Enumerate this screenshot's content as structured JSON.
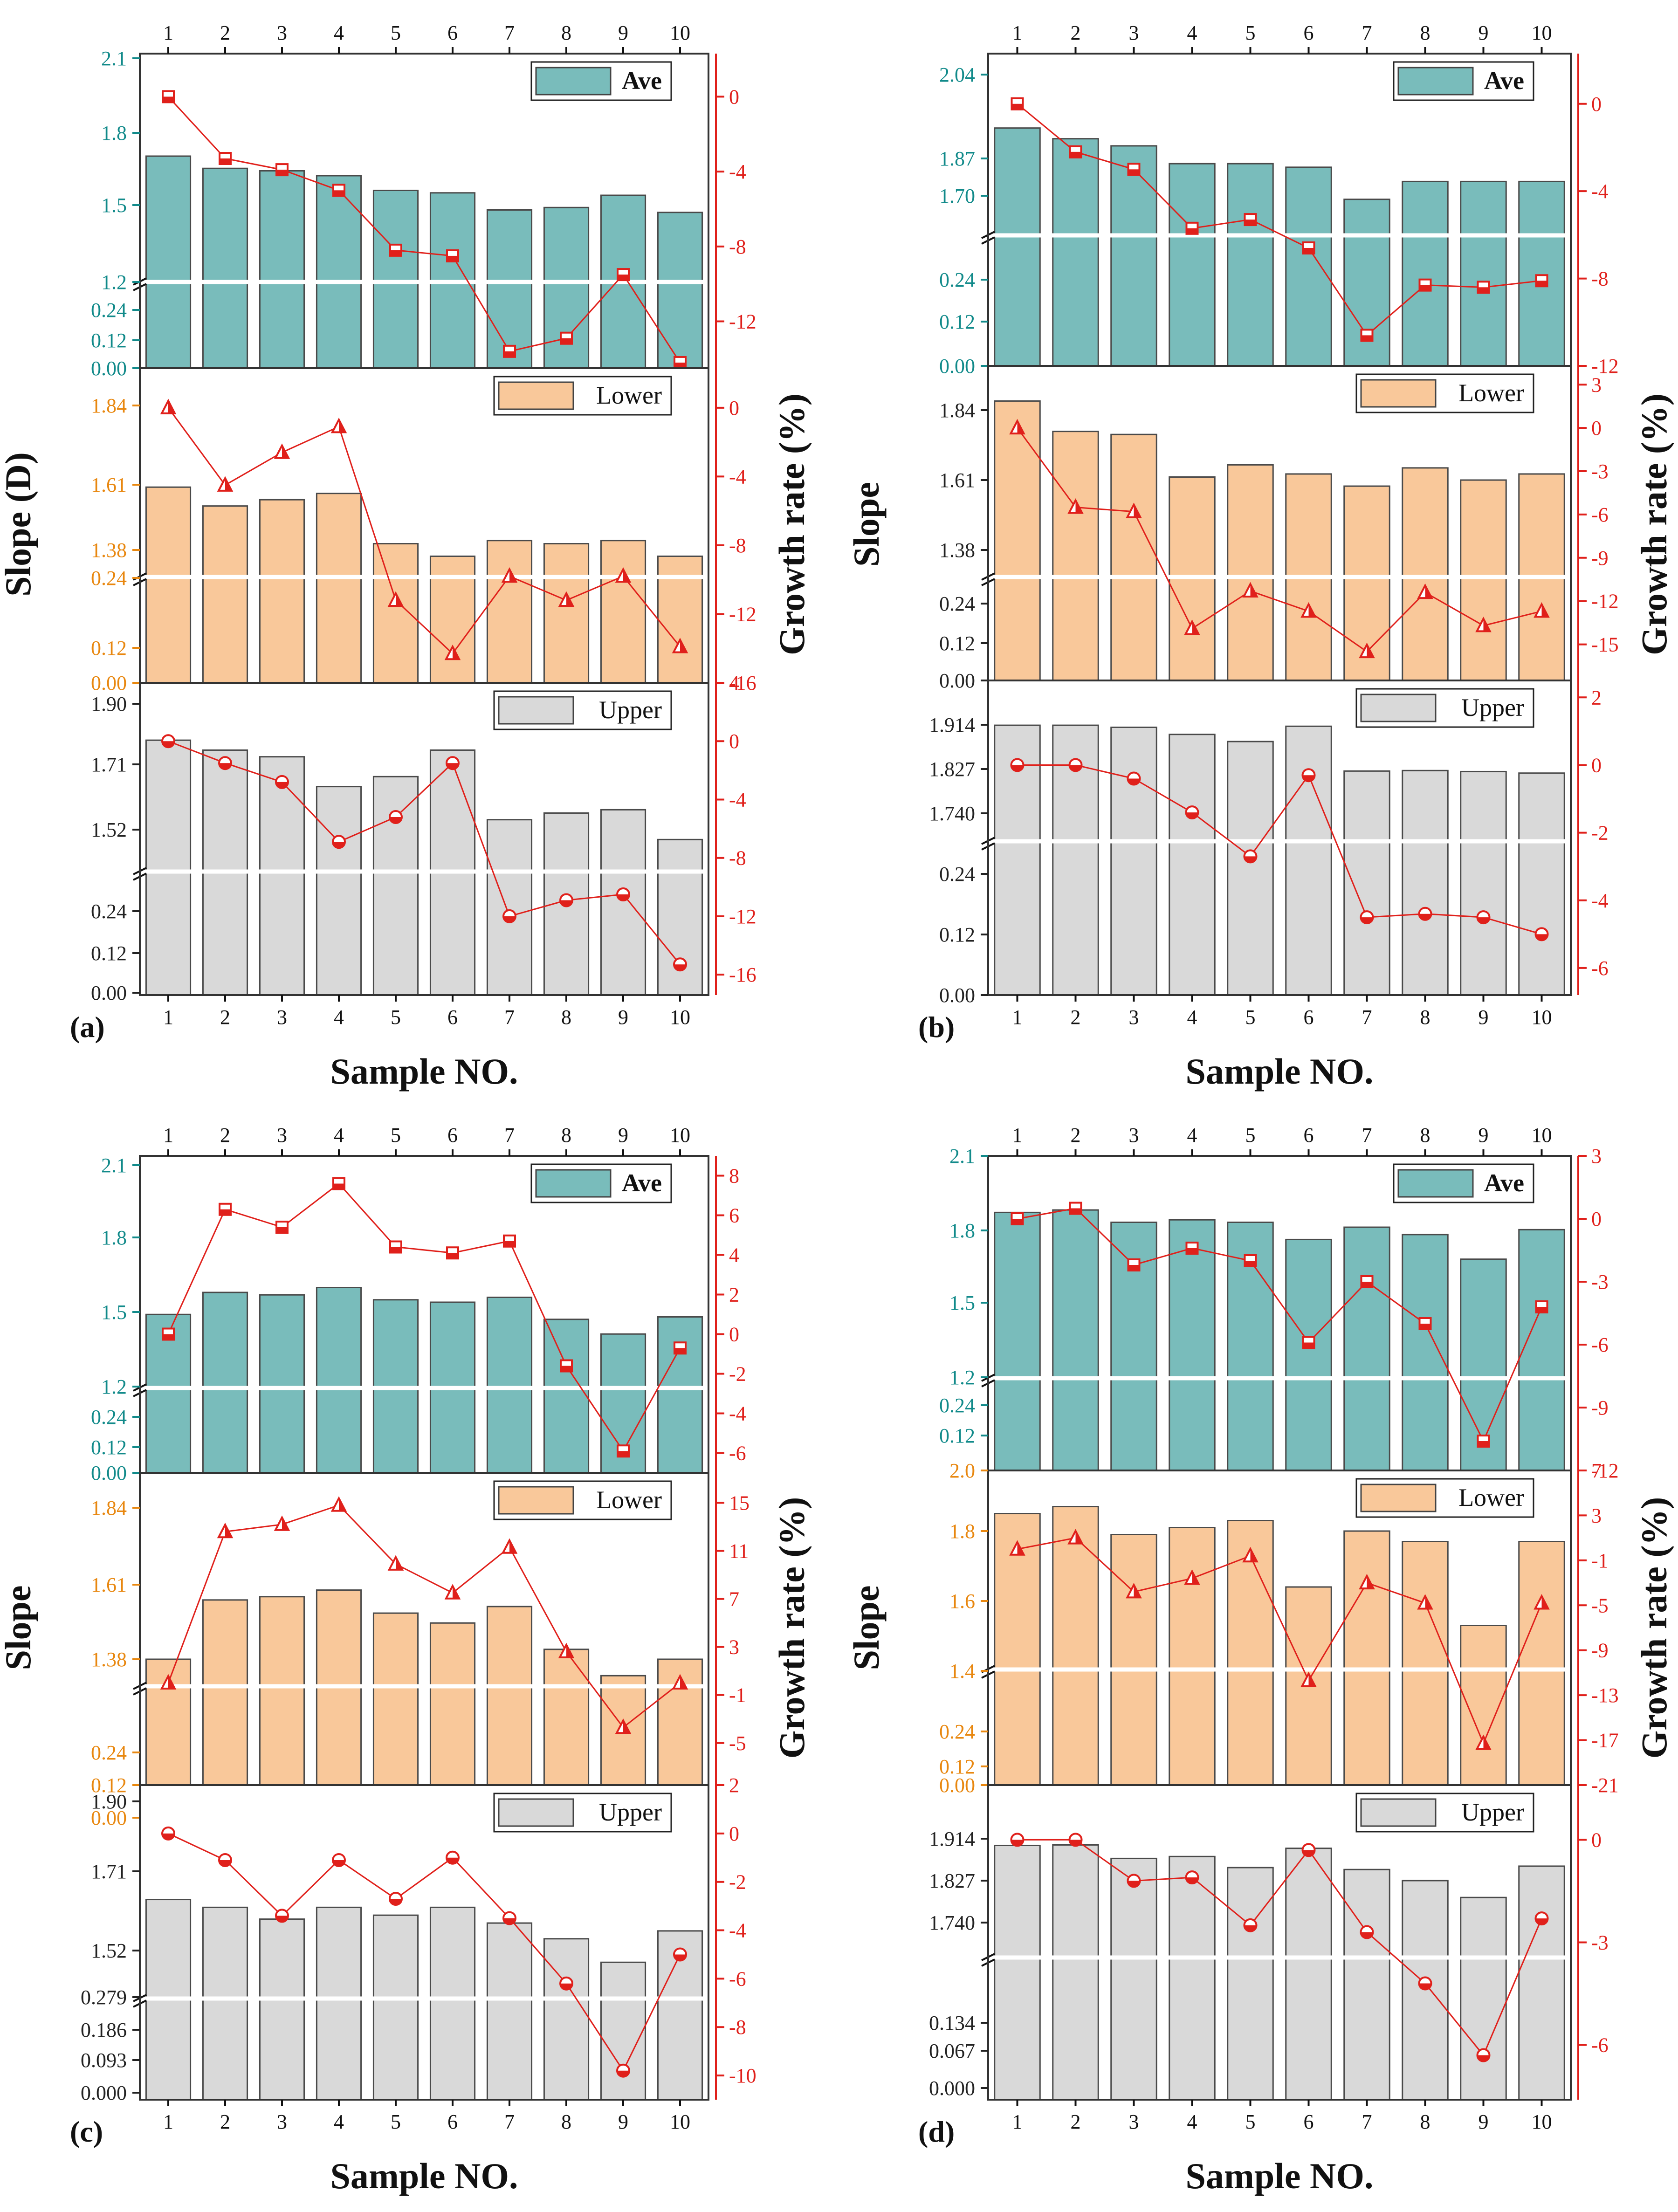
{
  "figure": {
    "sample_axis_label": "Sample NO.",
    "colors": {
      "ave": "#79bcbb",
      "lower": "#f9c89a",
      "upper": "#d9d9d9",
      "ave_axis": "#118a8a",
      "lower_axis": "#e8870f",
      "line": "#e0201b",
      "frame": "#333333"
    }
  },
  "chart_data": [
    {
      "type": "bar+line",
      "panel_label": "(a)",
      "xlabel": "Sample NO.",
      "ylabel": "Slope (D)",
      "y2label": "Growth rate (%)",
      "categories": [
        "1",
        "2",
        "3",
        "4",
        "5",
        "6",
        "7",
        "8",
        "9",
        "10"
      ],
      "subplots": [
        {
          "name": "Ave",
          "bar_color": "#79bcbb",
          "marker": "square",
          "left_axis_color": "#118a8a",
          "left_ticks": [
            "2.1",
            "1.8",
            "1.5",
            "1.2",
            "0.24",
            "0.12",
            "0.00"
          ],
          "bars": [
            1.7,
            1.65,
            1.64,
            1.62,
            1.56,
            1.55,
            1.48,
            1.49,
            1.54,
            1.47
          ],
          "right_ticks": [
            "0",
            "-4",
            "-8",
            "-12"
          ],
          "right_range": [
            -14.5,
            2.3
          ],
          "growth": [
            0,
            -3.3,
            -3.9,
            -5.0,
            -8.2,
            -8.5,
            -13.6,
            -12.9,
            -9.5,
            -14.2
          ]
        },
        {
          "name": "Lower",
          "bar_color": "#f9c89a",
          "marker": "triangle",
          "left_axis_color": "#e8870f",
          "left_ticks": [
            "1.84",
            "1.61",
            "1.38",
            "0.24",
            "0.12",
            "0.00"
          ],
          "bars": [
            1.58,
            1.52,
            1.54,
            1.56,
            1.4,
            1.36,
            1.41,
            1.4,
            1.41,
            1.36
          ],
          "right_ticks": [
            "0",
            "-4",
            "-8",
            "-12",
            "-16"
          ],
          "right_range": [
            -16,
            2.3
          ],
          "growth": [
            0,
            -4.5,
            -2.6,
            -1.1,
            -11.2,
            -14.3,
            -9.8,
            -11.2,
            -9.8,
            -13.9
          ]
        },
        {
          "name": "Upper",
          "bar_color": "#d9d9d9",
          "marker": "circle",
          "left_axis_color": "#222222",
          "left_ticks": [
            "1.90",
            "1.71",
            "1.52",
            "0.24",
            "0.12",
            "0.00"
          ],
          "bars": [
            1.79,
            1.76,
            1.74,
            1.65,
            1.68,
            1.76,
            1.55,
            1.57,
            1.58,
            1.49
          ],
          "right_ticks": [
            "4",
            "0",
            "-4",
            "-8",
            "-12",
            "-16"
          ],
          "right_range": [
            -17.4,
            4
          ],
          "growth": [
            0,
            -1.5,
            -2.8,
            -6.9,
            -5.2,
            -1.5,
            -12.0,
            -10.9,
            -10.5,
            -15.3
          ]
        }
      ]
    },
    {
      "type": "bar+line",
      "panel_label": "(b)",
      "xlabel": "Sample NO.",
      "ylabel": "Slope",
      "y2label": "Growth rate (%)",
      "categories": [
        "1",
        "2",
        "3",
        "4",
        "5",
        "6",
        "7",
        "8",
        "9",
        "10"
      ],
      "subplots": [
        {
          "name": "Ave",
          "bar_color": "#79bcbb",
          "marker": "square",
          "left_axis_color": "#118a8a",
          "left_ticks": [
            "2.04",
            "1.87",
            "1.70",
            "0.24",
            "0.12",
            "0.00"
          ],
          "bars": [
            1.89,
            1.86,
            1.84,
            1.79,
            1.79,
            1.78,
            1.69,
            1.74,
            1.74,
            1.74
          ],
          "right_ticks": [
            "0",
            "-4",
            "-8",
            "-12"
          ],
          "right_range": [
            -12,
            2.3
          ],
          "growth": [
            0,
            -2.2,
            -3.0,
            -5.7,
            -5.3,
            -6.6,
            -10.6,
            -8.3,
            -8.4,
            -8.1
          ]
        },
        {
          "name": "Lower",
          "bar_color": "#f9c89a",
          "marker": "triangle",
          "left_axis_color": "#222222",
          "left_ticks": [
            "1.84",
            "1.61",
            "1.38",
            "0.24",
            "0.12",
            "0.00"
          ],
          "bars": [
            1.87,
            1.77,
            1.76,
            1.62,
            1.66,
            1.63,
            1.59,
            1.65,
            1.61,
            1.63
          ],
          "right_ticks": [
            "3",
            "0",
            "-3",
            "-6",
            "-9",
            "-12",
            "-15"
          ],
          "right_range": [
            -17.5,
            4.3
          ],
          "growth": [
            0,
            -5.5,
            -5.8,
            -13.9,
            -11.3,
            -12.7,
            -15.5,
            -11.4,
            -13.7,
            -12.7
          ]
        },
        {
          "name": "Upper",
          "bar_color": "#d9d9d9",
          "marker": "circle",
          "left_axis_color": "#222222",
          "left_ticks": [
            "1.914",
            "1.827",
            "1.740",
            "0.24",
            "0.12",
            "0.00"
          ],
          "bars": [
            1.913,
            1.913,
            1.909,
            1.895,
            1.881,
            1.911,
            1.823,
            1.824,
            1.822,
            1.819
          ],
          "right_ticks": [
            "2",
            "0",
            "-2",
            "-4",
            "-6"
          ],
          "right_range": [
            -6.8,
            2.5
          ],
          "growth": [
            0,
            0,
            -0.4,
            -1.4,
            -2.7,
            -0.3,
            -4.5,
            -4.4,
            -4.5,
            -5.0
          ]
        }
      ]
    },
    {
      "type": "bar+line",
      "panel_label": "(c)",
      "xlabel": "Sample NO.",
      "ylabel": "Slope",
      "y2label": "Growth rate (%)",
      "categories": [
        "1",
        "2",
        "3",
        "4",
        "5",
        "6",
        "7",
        "8",
        "9",
        "10"
      ],
      "subplots": [
        {
          "name": "Ave",
          "bar_color": "#79bcbb",
          "marker": "square",
          "left_axis_color": "#118a8a",
          "left_ticks": [
            "2.1",
            "1.8",
            "1.5",
            "1.2",
            "0.24",
            "0.12",
            "0.00"
          ],
          "bars": [
            1.49,
            1.58,
            1.57,
            1.6,
            1.55,
            1.54,
            1.56,
            1.47,
            1.41,
            1.48
          ],
          "right_ticks": [
            "8",
            "6",
            "4",
            "2",
            "0",
            "-2",
            "-4",
            "-6"
          ],
          "right_range": [
            -7,
            9
          ],
          "growth": [
            0,
            6.3,
            5.4,
            7.6,
            4.4,
            4.1,
            4.7,
            -1.6,
            -5.9,
            -0.7
          ]
        },
        {
          "name": "Lower",
          "bar_color": "#f9c89a",
          "marker": "triangle",
          "left_axis_color": "#e8870f",
          "left_ticks": [
            "1.84",
            "1.61",
            "1.38",
            "0.24",
            "0.12",
            "0.00"
          ],
          "bars": [
            1.38,
            1.56,
            1.57,
            1.59,
            1.52,
            1.49,
            1.54,
            1.41,
            1.33,
            1.38
          ],
          "right_ticks": [
            "15",
            "11",
            "7",
            "3",
            "-1",
            "-5"
          ],
          "right_range": [
            -8.5,
            17.5
          ],
          "growth": [
            0,
            12.6,
            13.2,
            14.8,
            9.9,
            7.5,
            11.3,
            2.6,
            -3.7,
            0
          ]
        },
        {
          "name": "Upper",
          "bar_color": "#d9d9d9",
          "marker": "circle",
          "left_axis_color": "#222222",
          "left_ticks": [
            "1.90",
            "1.71",
            "1.52",
            "0.279",
            "0.186",
            "0.093",
            "0.000"
          ],
          "bars": [
            1.65,
            1.63,
            1.6,
            1.63,
            1.61,
            1.63,
            1.59,
            1.55,
            1.49,
            1.57
          ],
          "right_ticks": [
            "2",
            "0",
            "-2",
            "-4",
            "-6",
            "-8",
            "-10"
          ],
          "right_range": [
            -11,
            2
          ],
          "growth": [
            0,
            -1.1,
            -3.4,
            -1.1,
            -2.7,
            -1.0,
            -3.5,
            -6.2,
            -9.8,
            -5.0
          ]
        }
      ]
    },
    {
      "type": "bar+line",
      "panel_label": "(d)",
      "xlabel": "Sample NO.",
      "ylabel": "Slope",
      "y2label": "Growth rate (%)",
      "categories": [
        "1",
        "2",
        "3",
        "4",
        "5",
        "6",
        "7",
        "8",
        "9",
        "10"
      ],
      "subplots": [
        {
          "name": "Ave",
          "bar_color": "#79bcbb",
          "marker": "square",
          "left_axis_color": "#118a8a",
          "left_ticks": [
            "2.1",
            "1.8",
            "1.5",
            "1.2",
            "0.24",
            "0.12"
          ],
          "bars": [
            1.87,
            1.88,
            1.83,
            1.84,
            1.83,
            1.76,
            1.81,
            1.78,
            1.68,
            1.8
          ],
          "right_ticks": [
            "3",
            "0",
            "-3",
            "-6",
            "-9",
            "-12"
          ],
          "right_range": [
            -12,
            3
          ],
          "growth": [
            0,
            0.5,
            -2.2,
            -1.4,
            -2.0,
            -5.9,
            -3.0,
            -5.0,
            -10.6,
            -4.2
          ]
        },
        {
          "name": "Lower",
          "bar_color": "#f9c89a",
          "marker": "triangle",
          "left_axis_color": "#e8870f",
          "left_ticks": [
            "2.0",
            "1.8",
            "1.6",
            "1.4",
            "0.24",
            "0.12",
            "0.00"
          ],
          "bars": [
            1.85,
            1.87,
            1.79,
            1.81,
            1.83,
            1.64,
            1.8,
            1.77,
            1.53,
            1.77
          ],
          "right_ticks": [
            "7",
            "3",
            "-1",
            "-5",
            "-9",
            "-13",
            "-17",
            "-21"
          ],
          "right_range": [
            -21,
            7
          ],
          "growth": [
            0,
            1.0,
            -3.8,
            -2.6,
            -0.6,
            -11.7,
            -3.0,
            -4.8,
            -17.3,
            -4.8
          ]
        },
        {
          "name": "Upper",
          "bar_color": "#d9d9d9",
          "marker": "circle",
          "left_axis_color": "#222222",
          "left_ticks": [
            "1.914",
            "1.827",
            "1.740",
            "0.134",
            "0.067",
            "0.000"
          ],
          "bars": [
            1.9,
            1.901,
            1.873,
            1.877,
            1.854,
            1.894,
            1.85,
            1.827,
            1.792,
            1.857
          ],
          "right_ticks": [
            "0",
            "-3",
            "-6"
          ],
          "right_range": [
            -7.6,
            1.6
          ],
          "growth": [
            0,
            0,
            -1.2,
            -1.1,
            -2.5,
            -0.3,
            -2.7,
            -4.2,
            -6.3,
            -2.3
          ]
        }
      ]
    }
  ]
}
